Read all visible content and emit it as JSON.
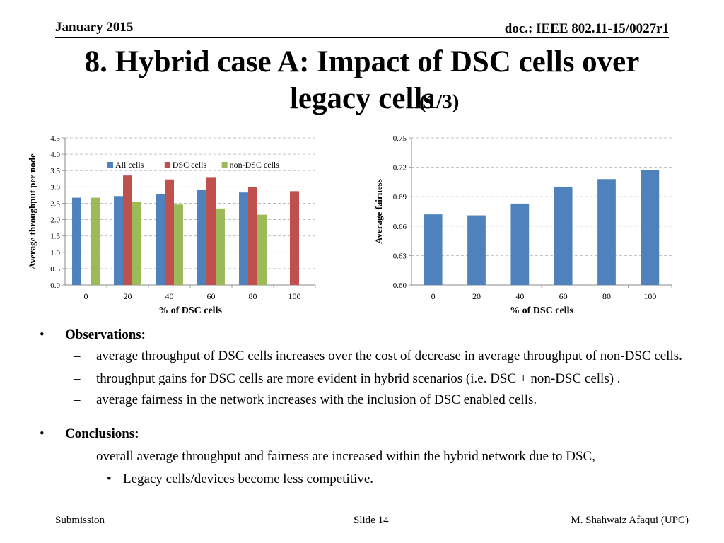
{
  "header": {
    "date": "January 2015",
    "doc": "doc.: IEEE 802.11-15/0027r1"
  },
  "title": {
    "main": "8. Hybrid case A: Impact of DSC cells over legacy cells",
    "sub": "(1/3)"
  },
  "chart_data": [
    {
      "type": "bar",
      "title": "",
      "xlabel": "% of DSC cells",
      "ylabel": "Average throughput per node",
      "categories": [
        "0",
        "20",
        "40",
        "60",
        "80",
        "100"
      ],
      "ylim": [
        0,
        4.5
      ],
      "yticks": [
        "0.0",
        "0.5",
        "1.0",
        "1.5",
        "2.0",
        "2.5",
        "3.0",
        "3.5",
        "4.0",
        "4.5"
      ],
      "grid": true,
      "legend_position": "top",
      "series": [
        {
          "name": "All cells",
          "color": "#4f81bd",
          "values": [
            2.67,
            2.72,
            2.77,
            2.9,
            2.83,
            null
          ]
        },
        {
          "name": "DSC cells",
          "color": "#c0504d",
          "values": [
            null,
            3.35,
            3.23,
            3.28,
            3.0,
            2.87
          ]
        },
        {
          "name": "non-DSC cells",
          "color": "#9bbb59",
          "values": [
            2.67,
            2.55,
            2.46,
            2.34,
            2.15,
            null
          ]
        }
      ]
    },
    {
      "type": "bar",
      "title": "",
      "xlabel": "% of DSC cells",
      "ylabel": "Average fairness",
      "categories": [
        "0",
        "20",
        "40",
        "60",
        "80",
        "100"
      ],
      "ylim": [
        0.6,
        0.75
      ],
      "yticks": [
        "0.60",
        "0.63",
        "0.66",
        "0.69",
        "0.72",
        "0.75"
      ],
      "grid": true,
      "legend_position": "none",
      "series": [
        {
          "color": "#4f81bd",
          "values": [
            0.672,
            0.671,
            0.683,
            0.7,
            0.708,
            0.717
          ]
        }
      ]
    }
  ],
  "observations": {
    "heading": "Observations:",
    "items": [
      "average throughput of DSC cells increases over the cost of decrease in average throughput of non-DSC cells.",
      "throughput gains for DSC cells are more evident in hybrid scenarios (i.e. DSC + non-DSC cells) .",
      "average fairness in the network increases with the inclusion of DSC enabled cells."
    ]
  },
  "conclusions": {
    "heading": "Conclusions:",
    "items": [
      "overall  average throughput and fairness are increased within the hybrid network due to DSC,"
    ],
    "subitems": [
      "Legacy cells/devices become less competitive."
    ]
  },
  "footer": {
    "left": "Submission",
    "center": "Slide 14",
    "right": "M. Shahwaiz Afaqui (UPC)"
  },
  "symbols": {
    "bullet": "•",
    "dash": "–"
  }
}
